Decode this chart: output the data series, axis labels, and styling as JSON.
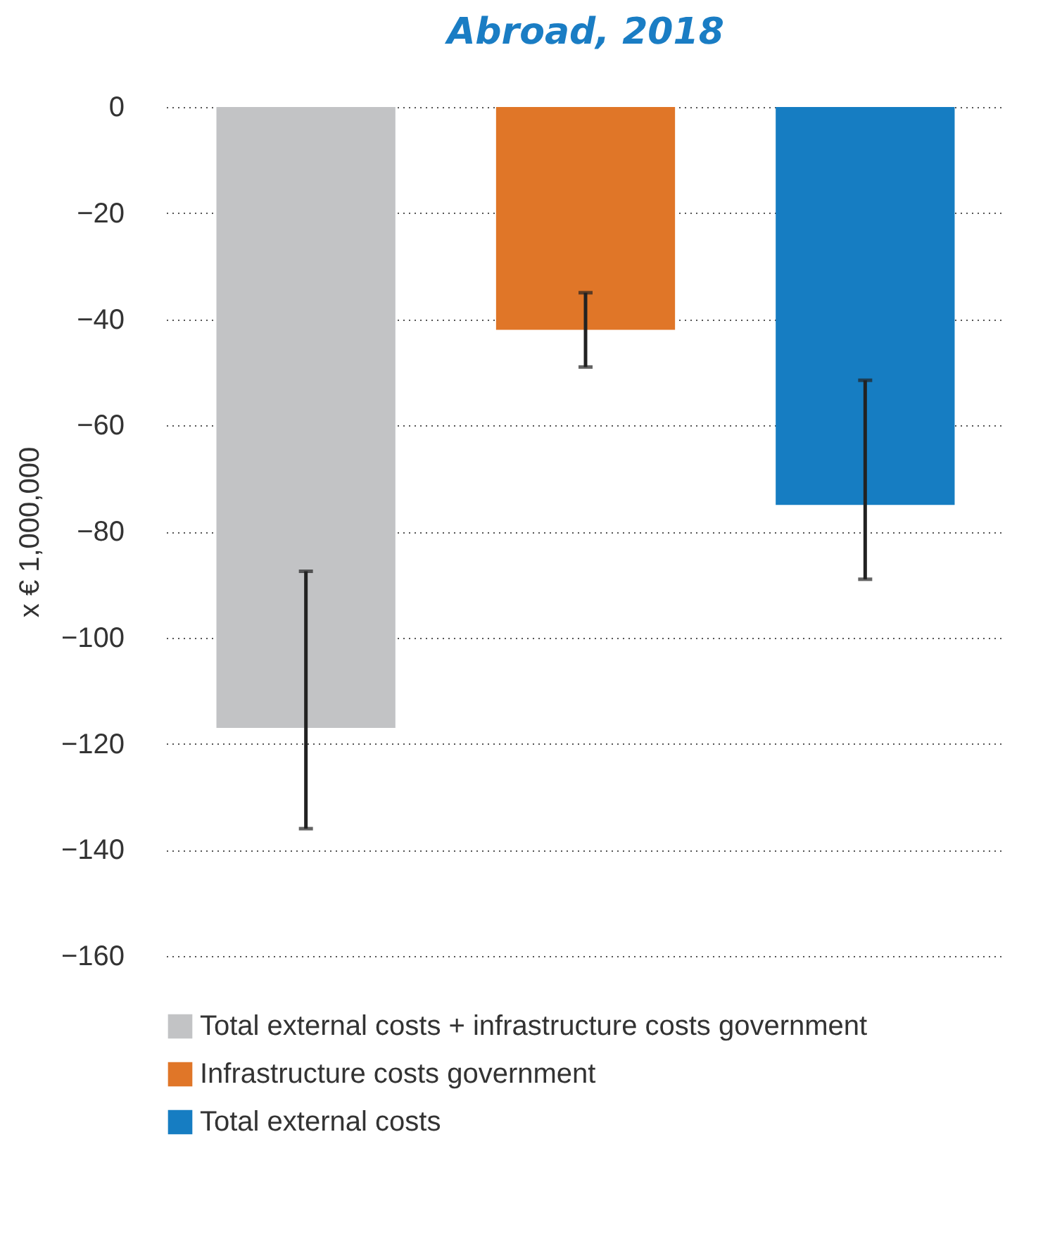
{
  "chart_data": {
    "type": "bar",
    "title": "Abroad, 2018",
    "ylabel": "x € 1,000,000",
    "categories": [
      null,
      null,
      null
    ],
    "series": [
      {
        "name": "Total external costs + infrastructure costs government",
        "color": "#c2c3c5",
        "values": [
          -117,
          null,
          null
        ],
        "errors": [
          [
            -136,
            -87.5
          ],
          null,
          null
        ]
      },
      {
        "name": "Infrastructure costs government",
        "color": "#e07628",
        "values": [
          null,
          -42,
          null
        ],
        "errors": [
          null,
          [
            -49,
            -35
          ],
          null
        ]
      },
      {
        "name": "Total external costs",
        "color": "#167dc2",
        "values": [
          null,
          null,
          -75
        ],
        "errors": [
          null,
          null,
          [
            -89,
            -51.5
          ]
        ]
      }
    ],
    "ylim": [
      -160,
      0
    ],
    "yticks": [
      -160,
      -140,
      -120,
      -100,
      -80,
      -60,
      -40,
      -20,
      0
    ],
    "grid": "y",
    "legend": "bottom"
  }
}
